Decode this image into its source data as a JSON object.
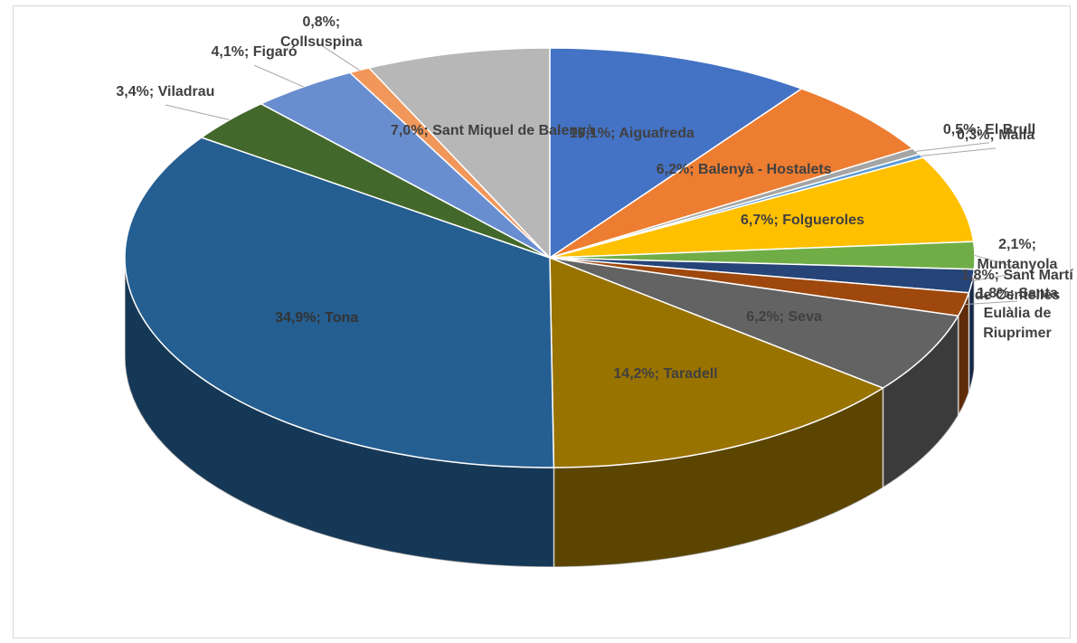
{
  "chart_data": {
    "type": "pie",
    "categories": [
      "Aiguafreda",
      "Balenyà - Hostalets",
      "El Brull",
      "Malla",
      "Folgueroles",
      "Muntanyola",
      "Sant Martí de Centelles",
      "Santa Eulàlia de Riuprimer",
      "Seva",
      "Taradell",
      "Tona",
      "Viladrau",
      "Figaró",
      "Collsuspina",
      "Sant Miquel de Balenyà"
    ],
    "values": [
      10.1,
      6.2,
      0.5,
      0.3,
      6.7,
      2.1,
      1.8,
      1.8,
      6.2,
      14.2,
      34.9,
      3.4,
      4.1,
      0.8,
      7.0
    ],
    "value_labels": [
      "10,1%;",
      "6,2%;",
      "0,5%;",
      "0,3%;",
      "6,7%;",
      "2,1%;",
      "1,8%;",
      "1,8%;",
      "6,2%;",
      "14,2%;",
      "34,9%;",
      "3,4%;",
      "4,1%;",
      "0,8%;",
      "7,0%;"
    ],
    "colors": [
      "#4472c4",
      "#ed7d31",
      "#a5a5a5",
      "#5b9bd5",
      "#ffc000",
      "#70ad47",
      "#264478",
      "#9e480e",
      "#636363",
      "#997300",
      "#255e91",
      "#43682b",
      "#698ed0",
      "#f1975a",
      "#b7b7b7"
    ]
  }
}
